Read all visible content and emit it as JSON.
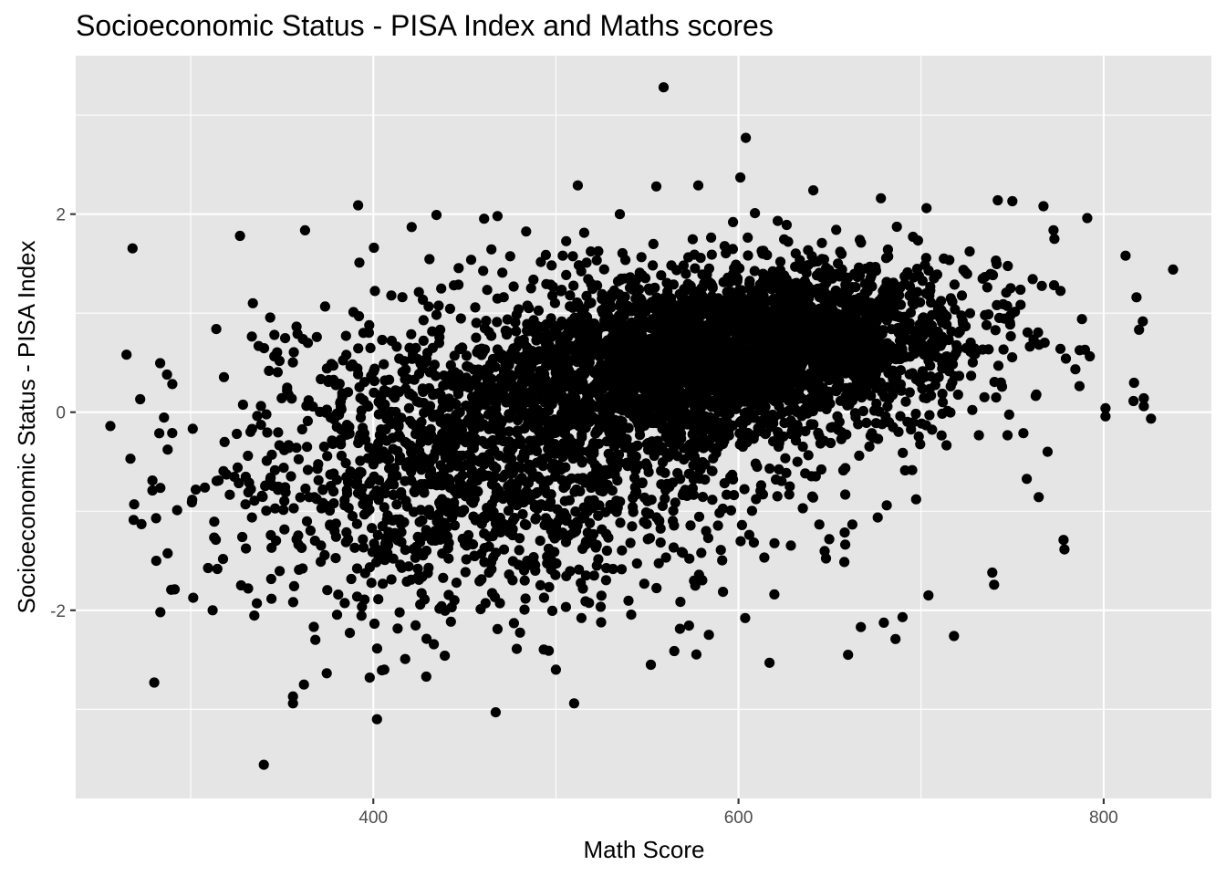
{
  "chart_data": {
    "type": "scatter",
    "title": "Socioeconomic Status - PISA Index and Maths scores",
    "xlabel": "Math Score",
    "ylabel": "Socioeconomic Status - PISA Index",
    "xlim": [
      237,
      859
    ],
    "ylim": [
      -3.9,
      3.6
    ],
    "x_ticks": [
      400,
      600,
      800
    ],
    "x_tick_labels": [
      "400",
      "600",
      "800"
    ],
    "y_ticks": [
      -2,
      0,
      2
    ],
    "y_tick_labels": [
      "-2",
      "0",
      "2"
    ],
    "grid": true,
    "legend": "none",
    "point_color": "#000000",
    "panel_background": "#e5e5e5",
    "n_points_estimate": 5000,
    "points": [
      {
        "x": 559,
        "y": 3.28
      },
      {
        "x": 604,
        "y": 2.77
      },
      {
        "x": 601,
        "y": 2.37
      },
      {
        "x": 512,
        "y": 2.29
      },
      {
        "x": 555,
        "y": 2.28
      },
      {
        "x": 578,
        "y": 2.29
      },
      {
        "x": 641,
        "y": 2.24
      },
      {
        "x": 340,
        "y": -3.56
      },
      {
        "x": 402,
        "y": -3.1
      },
      {
        "x": 467,
        "y": -3.03
      },
      {
        "x": 510,
        "y": -2.94
      },
      {
        "x": 356,
        "y": -2.94
      },
      {
        "x": 356,
        "y": -2.87
      },
      {
        "x": 362,
        "y": -2.75
      },
      {
        "x": 280,
        "y": -2.73
      },
      {
        "x": 398,
        "y": -2.68
      },
      {
        "x": 429,
        "y": -2.67
      },
      {
        "x": 500,
        "y": -2.6
      },
      {
        "x": 406,
        "y": -2.6
      },
      {
        "x": 256,
        "y": -0.14
      },
      {
        "x": 267,
        "y": -0.47
      },
      {
        "x": 269,
        "y": -0.93
      },
      {
        "x": 273,
        "y": -1.13
      },
      {
        "x": 279,
        "y": -0.79
      },
      {
        "x": 281,
        "y": -1.07
      },
      {
        "x": 287,
        "y": 0.38
      },
      {
        "x": 327,
        "y": 1.78
      },
      {
        "x": 334,
        "y": 1.1
      },
      {
        "x": 314,
        "y": 0.84
      },
      {
        "x": 312,
        "y": -2.0
      },
      {
        "x": 838,
        "y": 1.44
      },
      {
        "x": 822,
        "y": 0.14
      },
      {
        "x": 822,
        "y": 0.06
      },
      {
        "x": 801,
        "y": 0.04
      },
      {
        "x": 818,
        "y": 1.16
      },
      {
        "x": 812,
        "y": 1.58
      },
      {
        "x": 791,
        "y": 1.96
      },
      {
        "x": 778,
        "y": -1.29
      },
      {
        "x": 739,
        "y": -1.62
      },
      {
        "x": 704,
        "y": -1.85
      },
      {
        "x": 718,
        "y": -2.26
      },
      {
        "x": 686,
        "y": -2.29
      },
      {
        "x": 667,
        "y": -2.17
      },
      {
        "x": 660,
        "y": -2.45
      },
      {
        "x": 617,
        "y": -2.53
      },
      {
        "x": 552,
        "y": -2.55
      },
      {
        "x": 468,
        "y": 1.98
      },
      {
        "x": 421,
        "y": 1.87
      },
      {
        "x": 535,
        "y": 2.0
      },
      {
        "x": 609,
        "y": 2.01
      },
      {
        "x": 750,
        "y": 2.13
      },
      {
        "x": 742,
        "y": 2.14
      },
      {
        "x": 767,
        "y": 2.08
      },
      {
        "x": 678,
        "y": 2.16
      },
      {
        "x": 703,
        "y": 2.06
      },
      {
        "x": 773,
        "y": 1.75
      }
    ]
  }
}
